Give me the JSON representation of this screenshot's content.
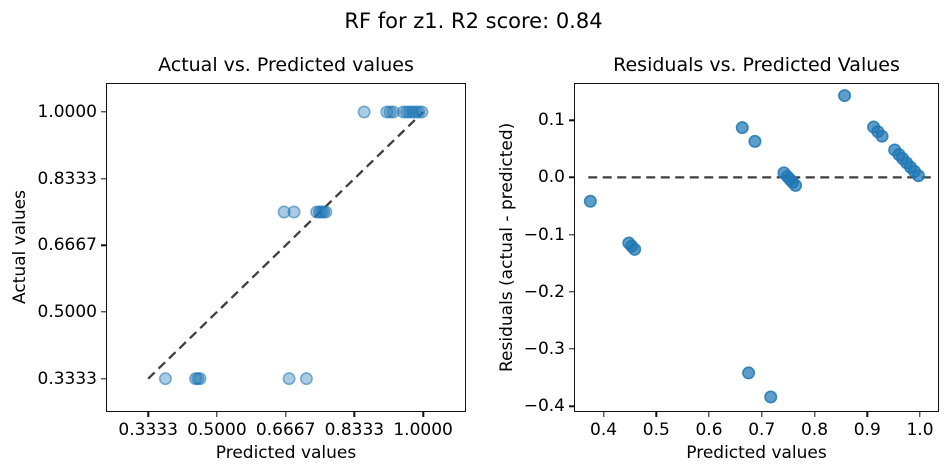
{
  "figure": {
    "suptitle": "RF for z1. R2 score: 0.84",
    "point_color": "#1f77b4",
    "line_color": "#3f3f3f"
  },
  "chart_data": [
    {
      "type": "scatter",
      "title": "Actual vs. Predicted values",
      "xlabel": "Predicted values",
      "ylabel": "Actual values",
      "xlim": [
        0.231,
        1.104
      ],
      "ylim": [
        0.25,
        1.0725
      ],
      "grid": false,
      "legend": false,
      "xticks": [
        0.3333,
        0.5,
        0.6667,
        0.8333,
        1.0
      ],
      "xtick_labels": [
        "0.3333",
        "0.5000",
        "0.6667",
        "0.8333",
        "1.0000"
      ],
      "yticks": [
        1.0,
        0.8333,
        0.6667,
        0.5,
        0.3333
      ],
      "ytick_labels": [
        "1.0000",
        "0.8333",
        "0.6667",
        "0.5000",
        "0.3333"
      ],
      "points": {
        "x": [
          0.375,
          0.448,
          0.4535,
          0.459,
          0.675,
          0.717,
          0.663,
          0.687,
          0.742,
          0.7485,
          0.7535,
          0.7585,
          0.764,
          0.857,
          0.912,
          0.92,
          0.928,
          0.952,
          0.96,
          0.967,
          0.9745,
          0.982,
          0.9895,
          0.997
        ],
        "y": [
          0.3333,
          0.3333,
          0.3333,
          0.3333,
          0.3333,
          0.3333,
          0.75,
          0.75,
          0.75,
          0.75,
          0.75,
          0.75,
          0.75,
          1.0,
          1.0,
          1.0,
          1.0,
          1.0,
          1.0,
          1.0,
          1.0,
          1.0,
          1.0,
          1.0
        ]
      },
      "dashed_line": {
        "x": [
          0.3333,
          1.0
        ],
        "y": [
          0.3333,
          1.0
        ],
        "meaning": "identity line y = x"
      }
    },
    {
      "type": "scatter",
      "title": "Residuals vs. Predicted Values",
      "xlabel": "Predicted values",
      "ylabel": "Residuals (actual - predicted)",
      "xlim": [
        0.344,
        1.036
      ],
      "ylim": [
        -0.41,
        0.165
      ],
      "grid": false,
      "legend": false,
      "xticks": [
        0.4,
        0.5,
        0.6,
        0.7,
        0.8,
        0.9,
        1.0
      ],
      "xtick_labels": [
        "0.4",
        "0.5",
        "0.6",
        "0.7",
        "0.8",
        "0.9",
        "1.0"
      ],
      "yticks": [
        0.1,
        0.0,
        -0.1,
        -0.2,
        -0.3,
        -0.4
      ],
      "ytick_labels": [
        "0.1",
        "0.0",
        "−0.1",
        "−0.2",
        "−0.3",
        "−0.4"
      ],
      "points": {
        "x": [
          0.375,
          0.448,
          0.4535,
          0.459,
          0.675,
          0.717,
          0.663,
          0.687,
          0.742,
          0.7485,
          0.7535,
          0.7585,
          0.764,
          0.857,
          0.912,
          0.92,
          0.928,
          0.952,
          0.96,
          0.967,
          0.9745,
          0.982,
          0.9895,
          0.997
        ],
        "y": [
          -0.0417,
          -0.1147,
          -0.1202,
          -0.1257,
          -0.3417,
          -0.3837,
          0.087,
          0.063,
          0.008,
          0.0015,
          -0.0035,
          -0.0085,
          -0.014,
          0.143,
          0.088,
          0.08,
          0.072,
          0.048,
          0.04,
          0.033,
          0.0255,
          0.018,
          0.0105,
          0.003
        ],
        "note": "residual = actual - predicted"
      },
      "dashed_line": {
        "x": [
          0.371,
          1.028
        ],
        "y": [
          0,
          0
        ],
        "meaning": "zero-residual reference"
      }
    }
  ]
}
